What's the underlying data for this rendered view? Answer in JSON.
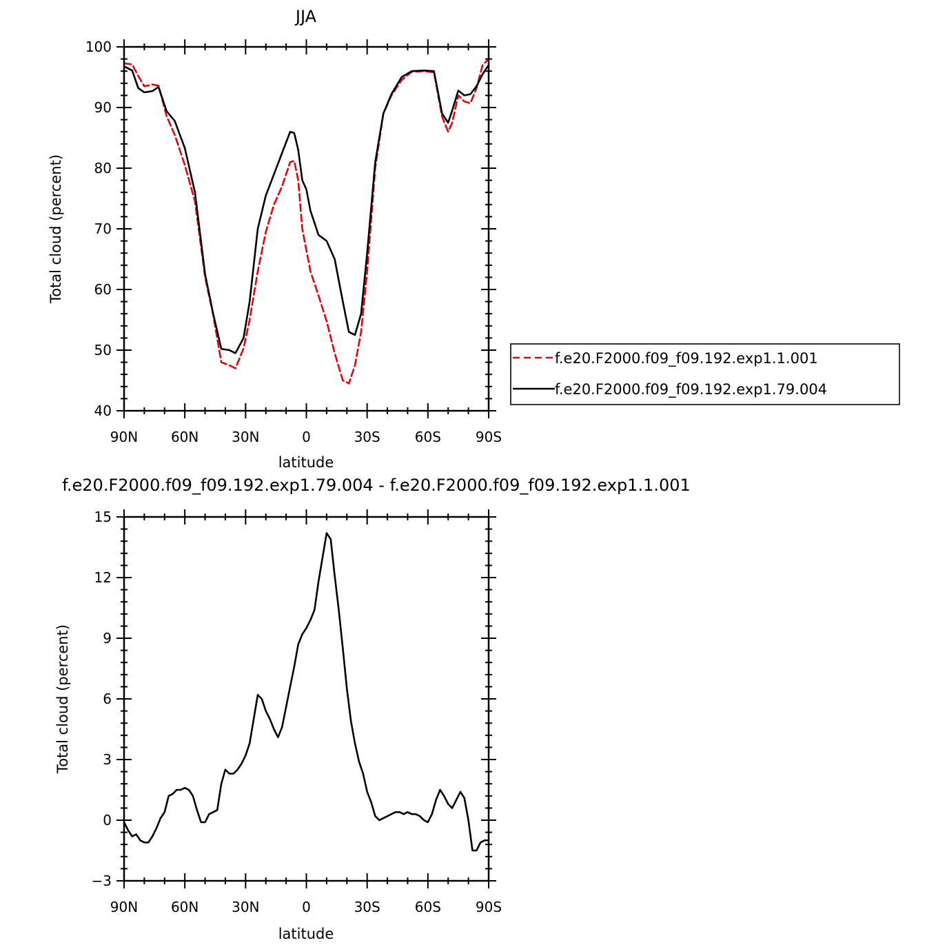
{
  "chart_data": [
    {
      "type": "line",
      "title": "JJA",
      "xlabel": "latitude",
      "ylabel": "Total cloud (percent)",
      "xlim": [
        -90,
        90
      ],
      "ylim": [
        40,
        100
      ],
      "x_direction": "north-to-south",
      "xticks": [
        -90,
        -60,
        -30,
        0,
        30,
        60,
        90
      ],
      "xtick_labels": [
        "90N",
        "60N",
        "30N",
        "0",
        "30S",
        "60S",
        "90S"
      ],
      "yticks": [
        40,
        50,
        60,
        70,
        80,
        90,
        100
      ],
      "ytick_labels": [
        "40",
        "50",
        "60",
        "70",
        "80",
        "90",
        "100"
      ],
      "grid": false,
      "legend_position": "outside-right",
      "series": [
        {
          "name": "f.e20.F2000.f09_f09.192.exp1.1.001",
          "color": "#e8000b",
          "dash": "dashed",
          "x": [
            -90,
            -86,
            -83,
            -80,
            -76,
            -73,
            -69,
            -65,
            -60,
            -55,
            -50,
            -46,
            -42,
            -38,
            -35,
            -31,
            -28,
            -24,
            -20,
            -16,
            -12,
            -8,
            -6,
            -4,
            -2,
            0,
            2,
            6,
            10,
            14,
            18,
            21,
            24,
            27,
            30,
            34,
            38,
            42,
            47,
            52,
            58,
            63,
            67,
            70,
            72,
            75,
            78,
            81,
            84,
            87,
            90
          ],
          "y": [
            97.3,
            97.1,
            95.2,
            93.5,
            93.8,
            93.6,
            88.6,
            85.5,
            80.5,
            74.5,
            62,
            55.8,
            48,
            47.5,
            47,
            50.3,
            55,
            63,
            69.5,
            74,
            77,
            81,
            81.2,
            78,
            70,
            66.5,
            63,
            59,
            54.8,
            49.5,
            45,
            44.5,
            47.5,
            53,
            63,
            80,
            89,
            92,
            94.5,
            95.9,
            96,
            95.8,
            88.5,
            86,
            87.5,
            92,
            91,
            90.7,
            93.2,
            97,
            98
          ]
        },
        {
          "name": "f.e20.F2000.f09_f09.192.exp1.79.004",
          "color": "#000000",
          "dash": "solid",
          "x": [
            -90,
            -86,
            -83,
            -80,
            -76,
            -73,
            -69,
            -65,
            -60,
            -55,
            -50,
            -46,
            -42,
            -38,
            -35,
            -31,
            -28,
            -24,
            -20,
            -16,
            -12,
            -8,
            -6,
            -4,
            -2,
            0,
            2,
            6,
            10,
            14,
            18,
            21,
            24,
            27,
            30,
            34,
            38,
            42,
            47,
            52,
            58,
            63,
            67,
            70,
            72,
            75,
            78,
            81,
            84,
            87,
            90
          ],
          "y": [
            96.8,
            96.1,
            93.2,
            92.5,
            92.7,
            93.4,
            89.4,
            87.8,
            83.3,
            76,
            62.5,
            56,
            50.2,
            50,
            49.5,
            52,
            58,
            70,
            75.5,
            79,
            82.5,
            86,
            85.8,
            83,
            78,
            76.5,
            73,
            69,
            68,
            65,
            58,
            53,
            52.5,
            56,
            66,
            81,
            89,
            92.2,
            95,
            96,
            96.1,
            96,
            89,
            87.5,
            89.5,
            92.8,
            92,
            92.2,
            93.5,
            95.5,
            97
          ]
        }
      ]
    },
    {
      "type": "line",
      "title": "f.e20.F2000.f09_f09.192.exp1.79.004 - f.e20.F2000.f09_f09.192.exp1.1.001",
      "xlabel": "latitude",
      "ylabel": "Total cloud (percent)",
      "xlim": [
        -90,
        90
      ],
      "ylim": [
        -3,
        15
      ],
      "x_direction": "north-to-south",
      "xticks": [
        -90,
        -60,
        -30,
        0,
        30,
        60,
        90
      ],
      "xtick_labels": [
        "90N",
        "60N",
        "30N",
        "0",
        "30S",
        "60S",
        "90S"
      ],
      "yticks": [
        -3,
        0,
        3,
        6,
        9,
        12,
        15
      ],
      "ytick_labels": [
        "−3",
        "0",
        "3",
        "6",
        "9",
        "12",
        "15"
      ],
      "grid": false,
      "series": [
        {
          "color": "#000000",
          "dash": "solid",
          "x": [
            -90,
            -88,
            -86,
            -84,
            -82,
            -80,
            -78,
            -76,
            -74,
            -72,
            -70,
            -68,
            -66,
            -64,
            -62,
            -60,
            -58,
            -56,
            -54,
            -52,
            -50,
            -48,
            -46,
            -44,
            -42,
            -40,
            -38,
            -36,
            -34,
            -32,
            -30,
            -28,
            -26,
            -24,
            -22,
            -20,
            -18,
            -16,
            -14,
            -12,
            -10,
            -8,
            -6,
            -4,
            -2,
            0,
            2,
            4,
            6,
            8,
            10,
            12,
            14,
            16,
            18,
            20,
            22,
            24,
            26,
            28,
            30,
            32,
            34,
            36,
            38,
            40,
            42,
            44,
            46,
            48,
            50,
            52,
            54,
            56,
            58,
            60,
            62,
            64,
            66,
            68,
            70,
            72,
            74,
            76,
            78,
            80,
            82,
            84,
            86,
            88,
            90
          ],
          "y": [
            -0.1,
            -0.5,
            -0.8,
            -0.7,
            -1.0,
            -1.1,
            -1.1,
            -0.8,
            -0.4,
            0.1,
            0.4,
            1.2,
            1.3,
            1.5,
            1.5,
            1.6,
            1.5,
            1.2,
            0.5,
            -0.1,
            -0.1,
            0.3,
            0.4,
            0.5,
            1.8,
            2.5,
            2.3,
            2.3,
            2.5,
            2.8,
            3.2,
            3.8,
            5.0,
            6.2,
            6.0,
            5.4,
            5.0,
            4.5,
            4.1,
            4.6,
            5.6,
            6.6,
            7.6,
            8.7,
            9.2,
            9.5,
            9.9,
            10.4,
            11.8,
            13.0,
            14.2,
            13.9,
            12.1,
            10.4,
            8.5,
            6.5,
            4.9,
            3.8,
            2.9,
            2.3,
            1.4,
            0.9,
            0.2,
            0.0,
            0.1,
            0.2,
            0.3,
            0.4,
            0.4,
            0.3,
            0.4,
            0.3,
            0.3,
            0.2,
            0.0,
            -0.1,
            0.3,
            1.0,
            1.5,
            1.2,
            0.8,
            0.6,
            1.0,
            1.4,
            1.1,
            0.0,
            -1.5,
            -1.5,
            -1.1,
            -1.0,
            -1.0
          ]
        }
      ]
    }
  ],
  "colors": {
    "obs": "#e8000b",
    "exp": "#000000"
  }
}
